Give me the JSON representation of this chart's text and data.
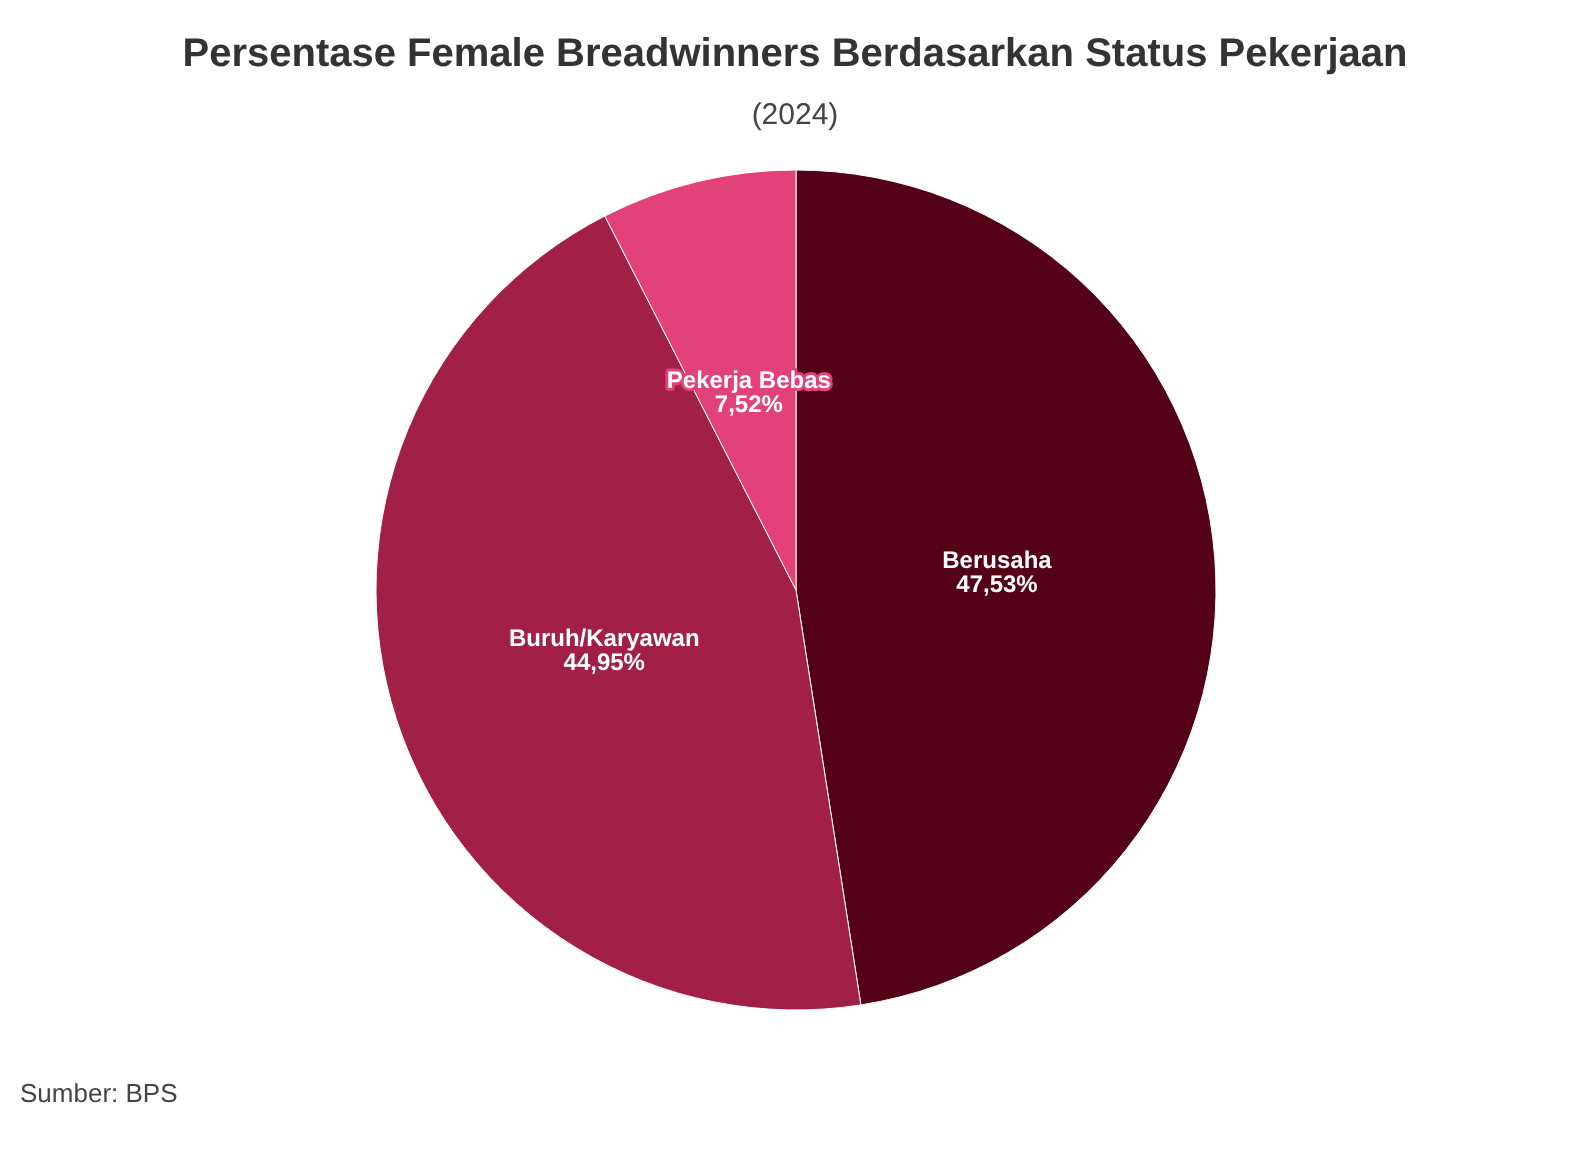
{
  "chart_data": {
    "type": "pie",
    "title": "Persentase Female Breadwinners Berdasarkan Status Pekerjaan",
    "subtitle": "(2024)",
    "categories": [
      "Berusaha",
      "Buruh/Karyawan",
      "Pekerja Bebas"
    ],
    "values": [
      47.53,
      44.95,
      7.52
    ],
    "colors": [
      "#550019",
      "#a21f48",
      "#e2417a"
    ],
    "value_labels": [
      "47,53%",
      "44,95%",
      "7,52%"
    ],
    "annotations": [
      "Sumber: BPS"
    ]
  }
}
